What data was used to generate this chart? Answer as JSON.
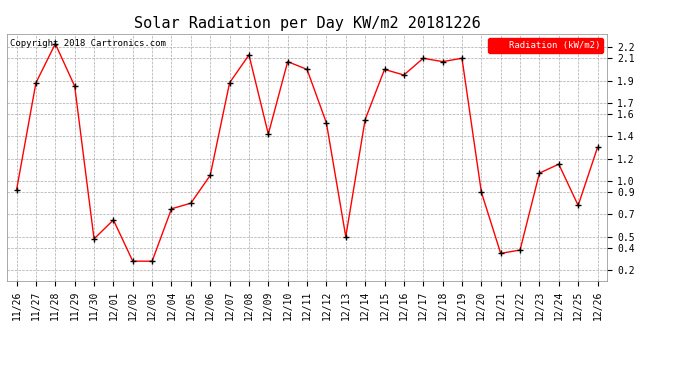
{
  "title": "Solar Radiation per Day KW/m2 20181226",
  "copyright_text": "Copyright 2018 Cartronics.com",
  "legend_label": "Radiation (kW/m2)",
  "dates": [
    "11/26",
    "11/27",
    "11/28",
    "11/29",
    "11/30",
    "12/01",
    "12/02",
    "12/03",
    "12/04",
    "12/05",
    "12/06",
    "12/07",
    "12/08",
    "12/09",
    "12/10",
    "12/11",
    "12/12",
    "12/13",
    "12/14",
    "12/15",
    "12/16",
    "12/17",
    "12/18",
    "12/19",
    "12/20",
    "12/21",
    "12/22",
    "12/23",
    "12/24",
    "12/25",
    "12/26"
  ],
  "values": [
    0.92,
    1.88,
    2.23,
    1.85,
    0.48,
    0.65,
    0.28,
    0.28,
    0.75,
    0.8,
    1.05,
    1.88,
    2.13,
    1.42,
    2.07,
    2.0,
    1.52,
    0.5,
    1.55,
    2.0,
    1.95,
    2.1,
    2.07,
    2.1,
    0.9,
    0.35,
    0.38,
    1.07,
    1.15,
    0.78,
    1.3
  ],
  "line_color": "red",
  "marker_color": "black",
  "bg_color": "white",
  "grid_color": "#aaaaaa",
  "legend_bg": "red",
  "legend_text_color": "white",
  "ylim_min": 0.1,
  "ylim_max": 2.32,
  "yticks": [
    0.2,
    0.4,
    0.5,
    0.7,
    0.9,
    1.0,
    1.2,
    1.4,
    1.6,
    1.7,
    1.9,
    2.1,
    2.2
  ],
  "title_fontsize": 11,
  "tick_fontsize": 7,
  "copyright_fontsize": 6.5
}
